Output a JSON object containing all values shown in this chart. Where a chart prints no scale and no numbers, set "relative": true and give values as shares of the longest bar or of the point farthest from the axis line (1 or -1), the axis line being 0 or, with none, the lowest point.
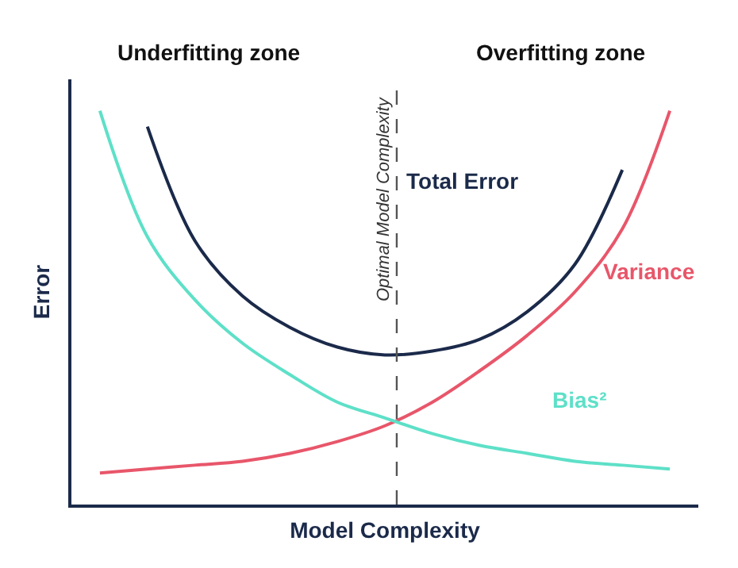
{
  "chart_data": {
    "type": "line",
    "relative": true,
    "xlabel": "Model Complexity",
    "ylabel": "Error",
    "categories": [
      null,
      null,
      null,
      null,
      null,
      null,
      null,
      null,
      null,
      null,
      null,
      null,
      null
    ],
    "series": [
      {
        "name": "Total Error",
        "color": "#1b2a4a",
        "values": [
          null,
          0.96,
          0.67,
          0.53,
          0.45,
          0.4,
          0.38,
          0.39,
          0.42,
          0.49,
          0.61,
          0.85,
          null
        ]
      },
      {
        "name": "Variance",
        "color": "#e8566a",
        "values": [
          0.08,
          0.09,
          0.1,
          0.11,
          0.13,
          0.16,
          0.2,
          0.26,
          0.34,
          0.43,
          0.54,
          0.7,
          1.0
        ]
      },
      {
        "name": "Bias²",
        "color": "#5ee0c8",
        "values": [
          1.0,
          0.68,
          0.52,
          0.41,
          0.33,
          0.26,
          0.22,
          0.18,
          0.15,
          0.13,
          0.11,
          0.1,
          0.09
        ]
      }
    ],
    "annotations": [
      "Underfitting zone",
      "Overfitting zone",
      "Optimal Model Complexity"
    ],
    "legend": false,
    "marker": "none",
    "line_style": "solid"
  }
}
